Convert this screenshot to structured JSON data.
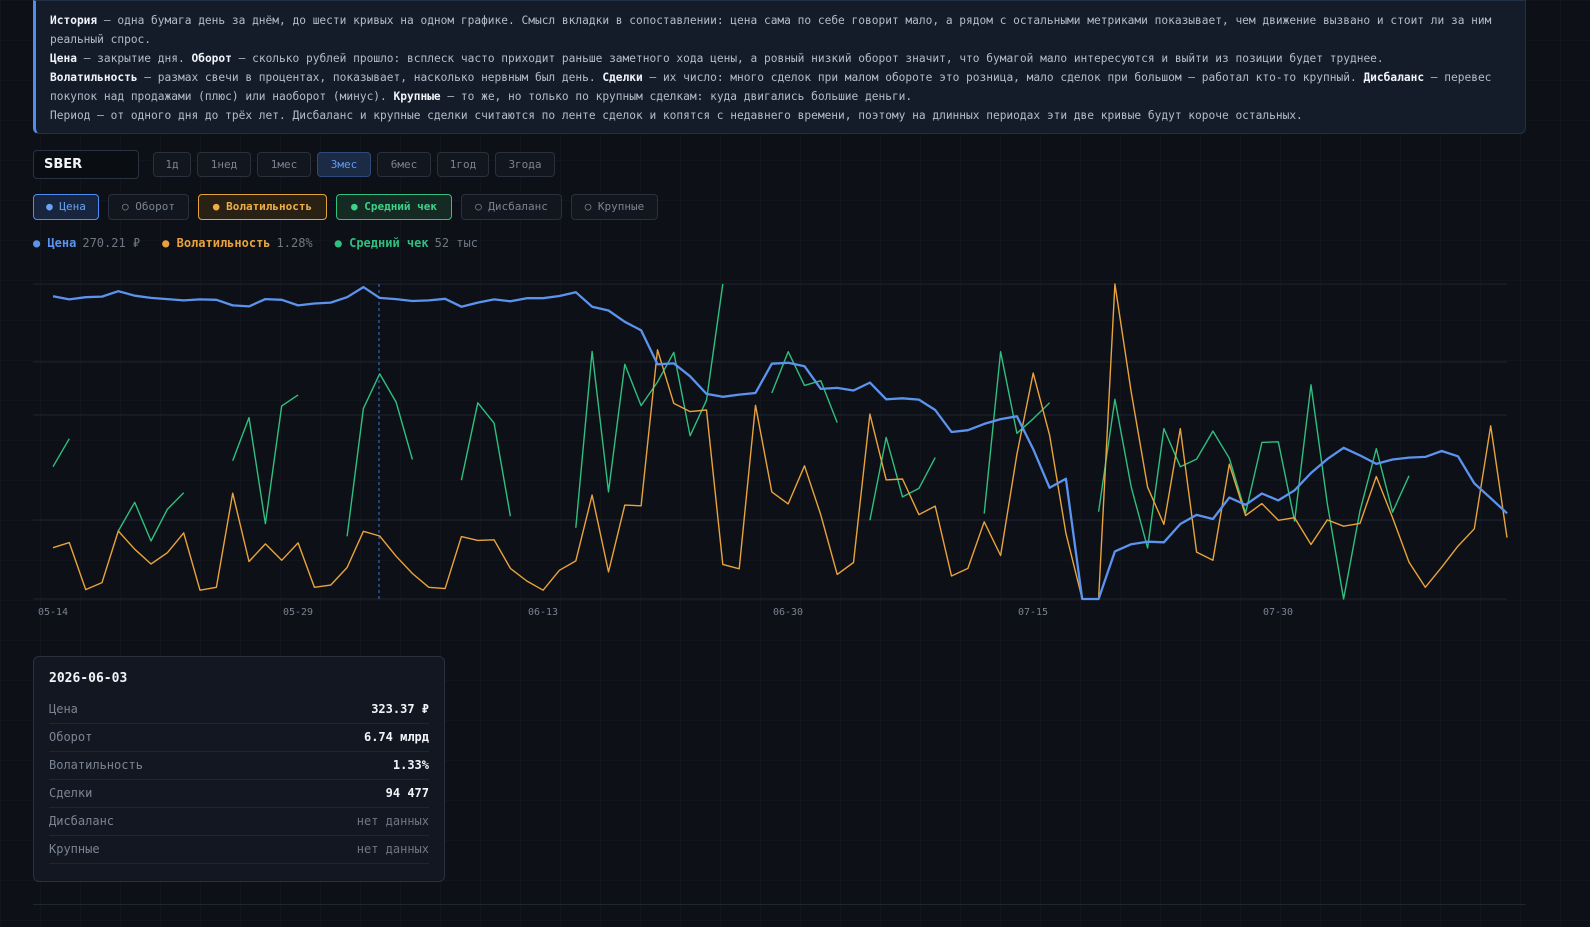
{
  "info": {
    "p1": [
      {
        "t": "История",
        "b": true
      },
      {
        "t": " — одна бумага день за днём, до шести кривых на одном графике. Смысл вкладки в сопоставлении: цена сама по себе говорит мало, а рядом с остальными метриками показывает, чем движение вызвано и стоит ли за ним реальный спрос.",
        "b": false
      }
    ],
    "p2": [
      {
        "t": "Цена",
        "b": true
      },
      {
        "t": " — закрытие дня. ",
        "b": false
      },
      {
        "t": "Оборот",
        "b": true
      },
      {
        "t": " — сколько рублей прошло: всплеск часто приходит раньше заметного хода цены, а ровный низкий оборот значит, что бумагой мало интересуются и выйти из позиции будет труднее.",
        "b": false
      }
    ],
    "p3": [
      {
        "t": "Волатильность",
        "b": true
      },
      {
        "t": " — размах свечи в процентах, показывает, насколько нервным был день. ",
        "b": false
      },
      {
        "t": "Сделки",
        "b": true
      },
      {
        "t": " — их число: много сделок при малом обороте это розница, мало сделок при большом — работал кто-то крупный. ",
        "b": false
      },
      {
        "t": "Дисбаланс",
        "b": true
      },
      {
        "t": " — перевес покупок над продажами (плюс) или наоборот (минус). ",
        "b": false
      },
      {
        "t": "Крупные",
        "b": true
      },
      {
        "t": " — то же, но только по крупным сделкам: куда двигались большие деньги.",
        "b": false
      }
    ],
    "p4": [
      {
        "t": "Период — от одного дня до трёх лет. Дисбаланс и крупные сделки считаются по ленте сделок и копятся с недавнего времени, поэтому на длинных периодах эти две кривые будут короче остальных.",
        "b": false
      }
    ]
  },
  "ticker": {
    "value": "SBER"
  },
  "periods": {
    "items": [
      "1д",
      "1нед",
      "1мес",
      "3мес",
      "6мес",
      "1год",
      "3года"
    ],
    "active": "3мес"
  },
  "metrics": [
    {
      "label": "● Цена",
      "state": "on-blue"
    },
    {
      "label": "○ Оборот",
      "state": "off"
    },
    {
      "label": "● Волатильность",
      "state": "on-orange"
    },
    {
      "label": "● Средний чек",
      "state": "on-green"
    },
    {
      "label": "○ Дисбаланс",
      "state": "off"
    },
    {
      "label": "○ Крупные",
      "state": "off"
    }
  ],
  "legend": [
    {
      "label": "Цена",
      "value": "270.21 ₽",
      "color": "#5b93ee"
    },
    {
      "label": "Волатильность",
      "value": "1.28%",
      "color": "#e9a33c"
    },
    {
      "label": "Средний чек",
      "value": "52 тыс",
      "color": "#2fbf7f"
    }
  ],
  "chart_data": {
    "type": "line",
    "x_ticks": [
      "05-14",
      "05-29",
      "06-13",
      "06-30",
      "07-15",
      "07-30"
    ],
    "crosshair_date": "2026-06-03",
    "series": [
      {
        "name": "Цена",
        "color": "#5b93ee",
        "values": [
          0.961,
          0.951,
          0.958,
          0.96,
          0.977,
          0.963,
          0.956,
          0.952,
          0.948,
          0.951,
          0.95,
          0.932,
          0.929,
          0.952,
          0.95,
          0.932,
          0.938,
          0.941,
          0.958,
          0.99,
          0.956,
          0.952,
          0.946,
          0.948,
          0.953,
          0.928,
          0.941,
          0.951,
          0.945,
          0.955,
          0.955,
          0.962,
          0.974,
          0.928,
          0.916,
          0.88,
          0.853,
          0.745,
          0.748,
          0.707,
          0.651,
          0.642,
          0.649,
          0.654,
          0.747,
          0.75,
          0.739,
          0.667,
          0.67,
          0.662,
          0.687,
          0.634,
          0.637,
          0.633,
          0.6,
          0.53,
          0.536,
          0.556,
          0.571,
          0.58,
          0.476,
          0.353,
          0.382,
          0.0,
          0.0,
          0.151,
          0.174,
          0.182,
          0.18,
          0.238,
          0.267,
          0.254,
          0.322,
          0.299,
          0.335,
          0.313,
          0.345,
          0.4,
          0.444,
          0.48,
          0.456,
          0.429,
          0.443,
          0.449,
          0.451,
          0.47,
          0.453,
          0.367,
          0.32,
          0.272
        ]
      },
      {
        "name": "Волатильность",
        "color": "#e9a33c",
        "values": [
          0.163,
          0.179,
          0.03,
          0.052,
          0.216,
          0.158,
          0.111,
          0.147,
          0.21,
          0.028,
          0.037,
          0.336,
          0.119,
          0.175,
          0.123,
          0.178,
          0.037,
          0.044,
          0.1,
          0.215,
          0.2,
          0.136,
          0.081,
          0.037,
          0.033,
          0.198,
          0.186,
          0.188,
          0.097,
          0.057,
          0.028,
          0.091,
          0.121,
          0.33,
          0.086,
          0.298,
          0.296,
          0.791,
          0.621,
          0.595,
          0.6,
          0.11,
          0.096,
          0.615,
          0.34,
          0.302,
          0.423,
          0.267,
          0.078,
          0.116,
          0.587,
          0.378,
          0.381,
          0.268,
          0.295,
          0.073,
          0.097,
          0.245,
          0.138,
          0.459,
          0.717,
          0.52,
          0.209,
          0.0,
          0.0,
          1.0,
          0.657,
          0.355,
          0.237,
          0.541,
          0.149,
          0.123,
          0.428,
          0.265,
          0.303,
          0.25,
          0.258,
          0.173,
          0.251,
          0.231,
          0.24,
          0.389,
          0.258,
          0.117,
          0.037,
          0.101,
          0.168,
          0.223,
          0.55,
          0.195
        ]
      },
      {
        "name": "Средний чек",
        "color": "#2fbf7f",
        "segments": [
          [
            [
              0,
              0.42
            ],
            [
              1,
              0.509
            ]
          ],
          [
            [
              4,
              0.216
            ],
            [
              5,
              0.307
            ],
            [
              6,
              0.184
            ],
            [
              7,
              0.285
            ],
            [
              8,
              0.337
            ]
          ],
          [
            [
              11,
              0.439
            ],
            [
              12,
              0.576
            ],
            [
              13,
              0.239
            ],
            [
              14,
              0.613
            ],
            [
              15,
              0.648
            ]
          ],
          [
            [
              18,
              0.199
            ],
            [
              19,
              0.605
            ],
            [
              20,
              0.715
            ],
            [
              21,
              0.625
            ],
            [
              22,
              0.443
            ]
          ],
          [
            [
              25,
              0.377
            ],
            [
              26,
              0.623
            ],
            [
              27,
              0.558
            ],
            [
              28,
              0.263
            ]
          ],
          [
            [
              32,
              0.226
            ],
            [
              33,
              0.786
            ],
            [
              34,
              0.34
            ],
            [
              35,
              0.745
            ],
            [
              36,
              0.614
            ],
            [
              37,
              0.689
            ],
            [
              38,
              0.783
            ],
            [
              39,
              0.518
            ],
            [
              40,
              0.631
            ],
            [
              41,
              1.0
            ]
          ],
          [
            [
              44,
              0.654
            ],
            [
              45,
              0.785
            ],
            [
              46,
              0.678
            ],
            [
              47,
              0.693
            ],
            [
              48,
              0.56
            ]
          ],
          [
            [
              50,
              0.25
            ],
            [
              51,
              0.513
            ],
            [
              52,
              0.324
            ],
            [
              53,
              0.351
            ],
            [
              54,
              0.449
            ]
          ],
          [
            [
              57,
              0.271
            ],
            [
              58,
              0.785
            ],
            [
              59,
              0.526
            ],
            [
              60,
              0.572
            ],
            [
              61,
              0.623
            ]
          ],
          [
            [
              64,
              0.277
            ],
            [
              65,
              0.634
            ],
            [
              66,
              0.356
            ],
            [
              67,
              0.162
            ],
            [
              68,
              0.541
            ],
            [
              69,
              0.42
            ],
            [
              70,
              0.444
            ],
            [
              71,
              0.533
            ],
            [
              72,
              0.447
            ],
            [
              73,
              0.273
            ],
            [
              74,
              0.497
            ],
            [
              75,
              0.499
            ],
            [
              76,
              0.247
            ],
            [
              77,
              0.68
            ],
            [
              78,
              0.303
            ],
            [
              79,
              0.0
            ],
            [
              80,
              0.28
            ],
            [
              81,
              0.477
            ],
            [
              82,
              0.276
            ],
            [
              83,
              0.391
            ]
          ]
        ]
      }
    ]
  },
  "tooltip": {
    "date": "2026-06-03",
    "rows": [
      {
        "k": "Цена",
        "v": "323.37 ₽",
        "na": false
      },
      {
        "k": "Оборот",
        "v": "6.74 млрд",
        "na": false
      },
      {
        "k": "Волатильность",
        "v": "1.33%",
        "na": false
      },
      {
        "k": "Сделки",
        "v": "94 477",
        "na": false
      },
      {
        "k": "Дисбаланс",
        "v": "нет данных",
        "na": true
      },
      {
        "k": "Крупные",
        "v": "нет данных",
        "na": true
      }
    ]
  }
}
